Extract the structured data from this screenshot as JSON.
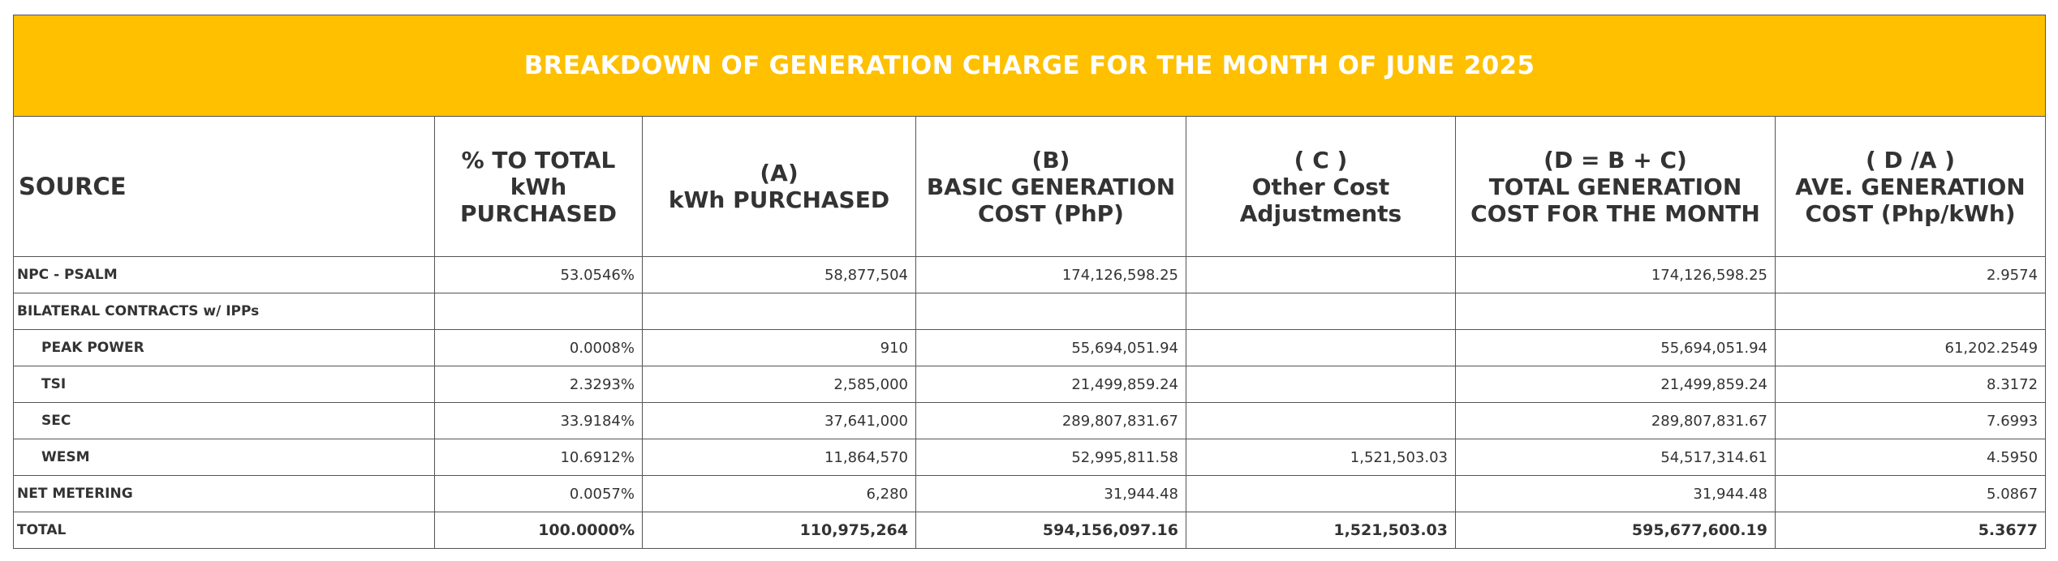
{
  "title": "BREAKDOWN OF GENERATION CHARGE FOR THE MONTH OF JUNE 2025",
  "colors": {
    "title_background": "#ffc000",
    "title_text": "#ffffff",
    "text": "#333333",
    "border": "#555555"
  },
  "headers": [
    {
      "lines": [
        "SOURCE"
      ]
    },
    {
      "lines": [
        "% TO TOTAL",
        "kWh",
        "PURCHASED"
      ]
    },
    {
      "lines": [
        "(A)",
        "kWh PURCHASED"
      ]
    },
    {
      "lines": [
        "(B)",
        "BASIC GENERATION",
        "COST (PhP)"
      ]
    },
    {
      "lines": [
        "( C )",
        "Other Cost",
        "Adjustments"
      ]
    },
    {
      "lines": [
        "(D = B + C)",
        "TOTAL GENERATION",
        "COST FOR THE MONTH"
      ]
    },
    {
      "lines": [
        "( D /A )",
        "AVE. GENERATION",
        "COST (Php/kWh)"
      ]
    }
  ],
  "rows": [
    {
      "source": "NPC - PSALM",
      "indent": false,
      "pct": "53.0546%",
      "kwh": "58,877,504",
      "basic": "174,126,598.25",
      "other": "",
      "total": "174,126,598.25",
      "ave": "2.9574"
    },
    {
      "source": "BILATERAL CONTRACTS w/ IPPs",
      "indent": false,
      "pct": "",
      "kwh": "",
      "basic": "",
      "other": "",
      "total": "",
      "ave": ""
    },
    {
      "source": "PEAK POWER",
      "indent": true,
      "pct": "0.0008%",
      "kwh": "910",
      "basic": "55,694,051.94",
      "other": "",
      "total": "55,694,051.94",
      "ave": "61,202.2549"
    },
    {
      "source": "TSI",
      "indent": true,
      "pct": "2.3293%",
      "kwh": "2,585,000",
      "basic": "21,499,859.24",
      "other": "",
      "total": "21,499,859.24",
      "ave": "8.3172"
    },
    {
      "source": "SEC",
      "indent": true,
      "pct": "33.9184%",
      "kwh": "37,641,000",
      "basic": "289,807,831.67",
      "other": "",
      "total": "289,807,831.67",
      "ave": "7.6993"
    },
    {
      "source": "WESM",
      "indent": true,
      "pct": "10.6912%",
      "kwh": "11,864,570",
      "basic": "52,995,811.58",
      "other": "1,521,503.03",
      "total": "54,517,314.61",
      "ave": "4.5950"
    },
    {
      "source": "NET METERING",
      "indent": false,
      "pct": "0.0057%",
      "kwh": "6,280",
      "basic": "31,944.48",
      "other": "",
      "total": "31,944.48",
      "ave": "5.0867"
    }
  ],
  "total": {
    "source": "TOTAL",
    "pct": "100.0000%",
    "kwh": "110,975,264",
    "basic": "594,156,097.16",
    "other": "1,521,503.03",
    "total": "595,677,600.19",
    "ave": "5.3677"
  }
}
